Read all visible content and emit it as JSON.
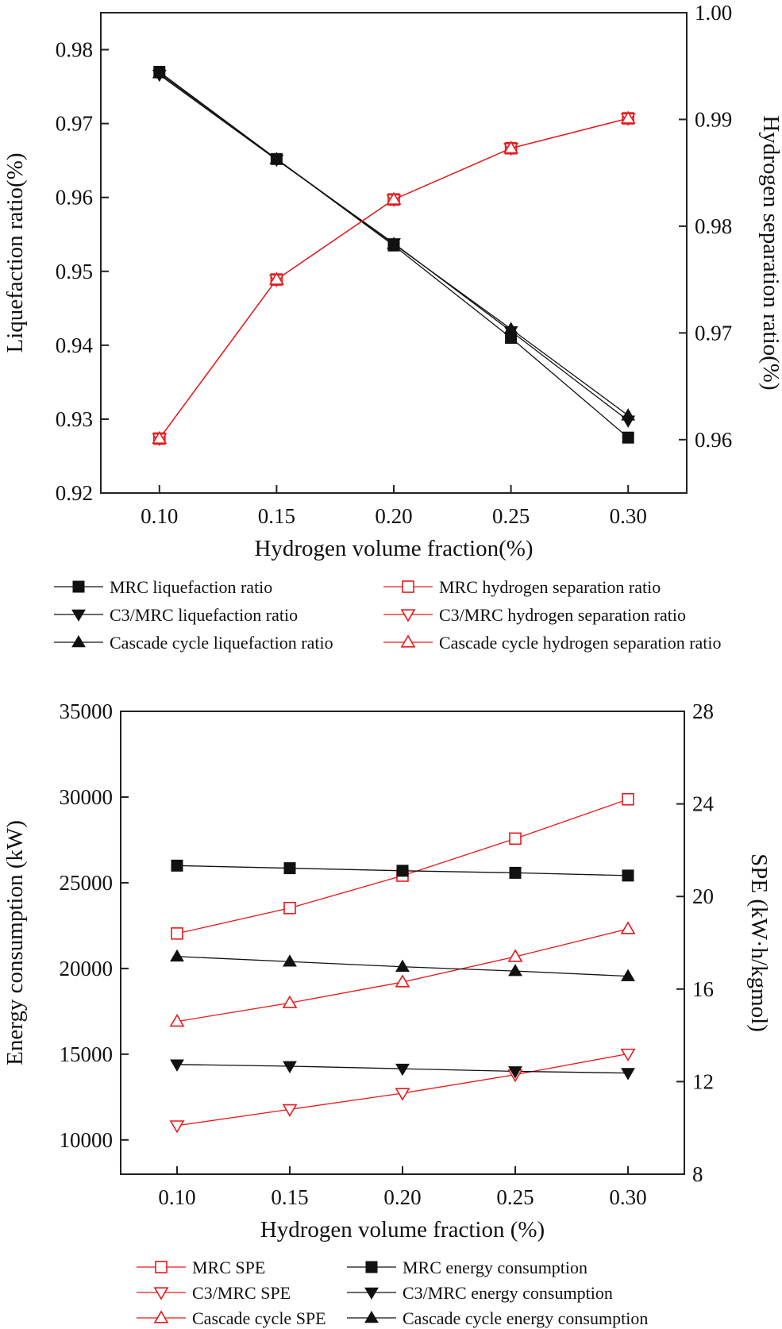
{
  "chart_data": [
    {
      "type": "line",
      "xlabel": "Hydrogen volume fraction(%)",
      "ylabel": "Liquefaction ratio(%)",
      "y2label": "Hydrogen separation ratio(%)",
      "xlim": [
        0.075,
        0.325
      ],
      "ylim": [
        0.92,
        0.985
      ],
      "y2lim": [
        0.955,
        1.0
      ],
      "xticks": [
        "0.10",
        "0.15",
        "0.20",
        "0.25",
        "0.30"
      ],
      "yticks": [
        "0.92",
        "0.93",
        "0.94",
        "0.95",
        "0.96",
        "0.97",
        "0.98"
      ],
      "y2ticks": [
        "0.96",
        "0.97",
        "0.98",
        "0.99",
        "1.00"
      ],
      "x": [
        0.1,
        0.15,
        0.2,
        0.25,
        0.3
      ],
      "series": [
        {
          "name": "MRC liquefaction ratio",
          "axis": "left",
          "color": "#111111",
          "marker": "square-filled",
          "values": [
            0.977,
            0.9652,
            0.9535,
            0.941,
            0.9275
          ]
        },
        {
          "name": "C3/MRC liquefaction ratio",
          "axis": "left",
          "color": "#111111",
          "marker": "triangle-down-filled",
          "values": [
            0.9766,
            0.9651,
            0.9538,
            0.9419,
            0.9298
          ]
        },
        {
          "name": "Cascade cycle liquefaction ratio",
          "axis": "left",
          "color": "#111111",
          "marker": "triangle-up-filled",
          "values": [
            0.9768,
            0.9652,
            0.9537,
            0.9422,
            0.9305
          ]
        },
        {
          "name": "MRC hydrogen separation ratio",
          "axis": "right",
          "color": "#e8191b",
          "marker": "square-open",
          "values": [
            0.9601,
            0.975,
            0.9825,
            0.9873,
            0.9901
          ]
        },
        {
          "name": "C3/MRC hydrogen separation ratio",
          "axis": "right",
          "color": "#e8191b",
          "marker": "triangle-down-open",
          "values": [
            0.9601,
            0.975,
            0.9825,
            0.9873,
            0.9901
          ]
        },
        {
          "name": "Cascade cycle hydrogen separation ratio",
          "axis": "right",
          "color": "#e8191b",
          "marker": "triangle-up-open",
          "values": [
            0.9601,
            0.975,
            0.9825,
            0.9873,
            0.9901
          ]
        }
      ],
      "legend": "below",
      "legend_order": [
        0,
        3,
        1,
        4,
        2,
        5
      ]
    },
    {
      "type": "line",
      "xlabel": "Hydrogen volume fraction (%)",
      "ylabel": "Energy consumption (kW)",
      "y2label": "SPE (kW·h/kgmol)",
      "xlim": [
        0.075,
        0.325
      ],
      "ylim": [
        8000,
        35000
      ],
      "y2lim": [
        8,
        28
      ],
      "xticks": [
        "0.10",
        "0.15",
        "0.20",
        "0.25",
        "0.30"
      ],
      "yticks": [
        "10000",
        "15000",
        "20000",
        "25000",
        "30000",
        "35000"
      ],
      "y2ticks": [
        "8",
        "12",
        "16",
        "20",
        "24",
        "28"
      ],
      "x": [
        0.1,
        0.15,
        0.2,
        0.25,
        0.3
      ],
      "series": [
        {
          "name": "MRC SPE",
          "axis": "right",
          "color": "#e8191b",
          "marker": "square-open",
          "values": [
            18.4,
            19.5,
            20.9,
            22.5,
            24.2
          ]
        },
        {
          "name": "C3/MRC SPE",
          "axis": "right",
          "color": "#e8191b",
          "marker": "triangle-down-open",
          "values": [
            10.1,
            10.8,
            11.5,
            12.3,
            13.2
          ]
        },
        {
          "name": "Cascade cycle SPE",
          "axis": "right",
          "color": "#e8191b",
          "marker": "triangle-up-open",
          "values": [
            14.6,
            15.4,
            16.3,
            17.4,
            18.6
          ]
        },
        {
          "name": "MRC energy consumption",
          "axis": "left",
          "color": "#111111",
          "marker": "square-filled",
          "values": [
            26000,
            25850,
            25700,
            25580,
            25420
          ]
        },
        {
          "name": "C3/MRC energy consumption",
          "axis": "left",
          "color": "#111111",
          "marker": "triangle-down-filled",
          "values": [
            14400,
            14300,
            14150,
            14000,
            13900
          ]
        },
        {
          "name": "Cascade cycle energy consumption",
          "axis": "left",
          "color": "#111111",
          "marker": "triangle-up-filled",
          "values": [
            20700,
            20400,
            20100,
            19850,
            19550
          ]
        }
      ],
      "legend": "below",
      "legend_order": [
        0,
        3,
        1,
        4,
        2,
        5
      ]
    }
  ]
}
